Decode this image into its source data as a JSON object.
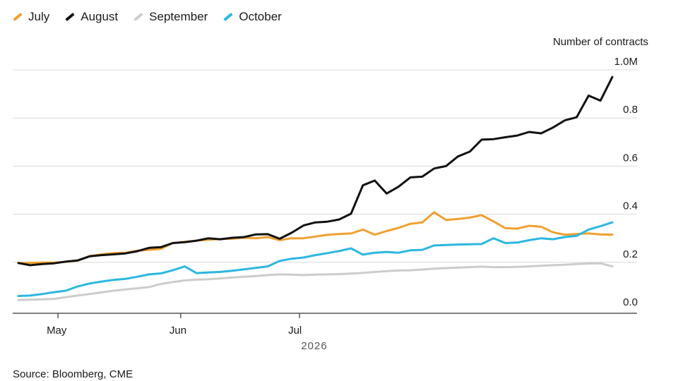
{
  "chart_data": {
    "type": "line",
    "ylabel": "Number of contracts",
    "xlabel": "2026",
    "ylim": [
      0,
      1.0
    ],
    "y_ticks": [
      "0.0",
      "0.2",
      "0.4",
      "0.6",
      "0.8",
      "1.0M"
    ],
    "x_ticks": [
      "May",
      "Jun",
      "Jul"
    ],
    "grid": "horizontal",
    "legend_position": "top-left",
    "source": "Source: Bloomberg, CME",
    "series": [
      {
        "name": "July",
        "color": "#f0a030",
        "points": [
          [
            "2026-04-21",
            0.197
          ],
          [
            "2026-04-24",
            0.198
          ],
          [
            "2026-04-27",
            0.199
          ],
          [
            "2026-04-30",
            0.199
          ],
          [
            "2026-05-03",
            0.202
          ],
          [
            "2026-05-06",
            0.207
          ],
          [
            "2026-05-09",
            0.226
          ],
          [
            "2026-05-12",
            0.233
          ],
          [
            "2026-05-15",
            0.238
          ],
          [
            "2026-05-18",
            0.24
          ],
          [
            "2026-05-21",
            0.248
          ],
          [
            "2026-05-24",
            0.252
          ],
          [
            "2026-05-27",
            0.256
          ],
          [
            "2026-05-30",
            0.28
          ],
          [
            "2026-06-02",
            0.285
          ],
          [
            "2026-06-05",
            0.29
          ],
          [
            "2026-06-08",
            0.294
          ],
          [
            "2026-06-11",
            0.297
          ],
          [
            "2026-06-14",
            0.298
          ],
          [
            "2026-06-17",
            0.302
          ],
          [
            "2026-06-20",
            0.3
          ],
          [
            "2026-06-23",
            0.305
          ],
          [
            "2026-06-26",
            0.292
          ],
          [
            "2026-06-29",
            0.3
          ],
          [
            "2026-07-02",
            0.3
          ],
          [
            "2026-07-05",
            0.307
          ],
          [
            "2026-07-08",
            0.314
          ],
          [
            "2026-07-11",
            0.318
          ],
          [
            "2026-07-14",
            0.32
          ],
          [
            "2026-07-17",
            0.336
          ],
          [
            "2026-07-20",
            0.315
          ],
          [
            "2026-07-23",
            0.33
          ],
          [
            "2026-07-26",
            0.343
          ],
          [
            "2026-07-29",
            0.36
          ],
          [
            "2026-08-01",
            0.366
          ],
          [
            "2026-08-04",
            0.408
          ],
          [
            "2026-08-07",
            0.376
          ],
          [
            "2026-08-10",
            0.38
          ],
          [
            "2026-08-13",
            0.386
          ],
          [
            "2026-08-16",
            0.396
          ],
          [
            "2026-08-19",
            0.37
          ],
          [
            "2026-08-22",
            0.342
          ],
          [
            "2026-08-25",
            0.34
          ],
          [
            "2026-08-28",
            0.352
          ],
          [
            "2026-08-31",
            0.348
          ],
          [
            "2026-09-03",
            0.325
          ],
          [
            "2026-09-06",
            0.315
          ],
          [
            "2026-09-09",
            0.318
          ],
          [
            "2026-09-12",
            0.32
          ],
          [
            "2026-09-15",
            0.316
          ],
          [
            "2026-09-18",
            0.315
          ]
        ]
      },
      {
        "name": "August",
        "color": "#111111",
        "points": [
          [
            "2026-04-21",
            0.197
          ],
          [
            "2026-04-24",
            0.188
          ],
          [
            "2026-04-27",
            0.193
          ],
          [
            "2026-04-30",
            0.196
          ],
          [
            "2026-05-03",
            0.203
          ],
          [
            "2026-05-06",
            0.208
          ],
          [
            "2026-05-09",
            0.225
          ],
          [
            "2026-05-12",
            0.23
          ],
          [
            "2026-05-15",
            0.233
          ],
          [
            "2026-05-18",
            0.237
          ],
          [
            "2026-05-21",
            0.246
          ],
          [
            "2026-05-24",
            0.26
          ],
          [
            "2026-05-27",
            0.263
          ],
          [
            "2026-05-30",
            0.28
          ],
          [
            "2026-06-02",
            0.284
          ],
          [
            "2026-06-05",
            0.29
          ],
          [
            "2026-06-08",
            0.3
          ],
          [
            "2026-06-11",
            0.296
          ],
          [
            "2026-06-14",
            0.302
          ],
          [
            "2026-06-17",
            0.305
          ],
          [
            "2026-06-20",
            0.316
          ],
          [
            "2026-06-23",
            0.317
          ],
          [
            "2026-06-26",
            0.298
          ],
          [
            "2026-06-29",
            0.323
          ],
          [
            "2026-07-02",
            0.353
          ],
          [
            "2026-07-05",
            0.366
          ],
          [
            "2026-07-08",
            0.369
          ],
          [
            "2026-07-11",
            0.378
          ],
          [
            "2026-07-14",
            0.402
          ],
          [
            "2026-07-17",
            0.52
          ],
          [
            "2026-07-20",
            0.54
          ],
          [
            "2026-07-23",
            0.486
          ],
          [
            "2026-07-26",
            0.514
          ],
          [
            "2026-07-29",
            0.553
          ],
          [
            "2026-08-01",
            0.556
          ],
          [
            "2026-08-04",
            0.59
          ],
          [
            "2026-08-07",
            0.6
          ],
          [
            "2026-08-10",
            0.64
          ],
          [
            "2026-08-13",
            0.66
          ],
          [
            "2026-08-16",
            0.71
          ],
          [
            "2026-08-19",
            0.712
          ],
          [
            "2026-08-22",
            0.72
          ],
          [
            "2026-08-25",
            0.727
          ],
          [
            "2026-08-28",
            0.742
          ],
          [
            "2026-08-31",
            0.736
          ],
          [
            "2026-09-03",
            0.76
          ],
          [
            "2026-09-06",
            0.79
          ],
          [
            "2026-09-09",
            0.803
          ],
          [
            "2026-09-12",
            0.893
          ],
          [
            "2026-09-15",
            0.872
          ],
          [
            "2026-09-18",
            0.97
          ]
        ]
      },
      {
        "name": "September",
        "color": "#cccccc",
        "points": [
          [
            "2026-04-21",
            0.043
          ],
          [
            "2026-04-24",
            0.045
          ],
          [
            "2026-04-27",
            0.046
          ],
          [
            "2026-04-30",
            0.048
          ],
          [
            "2026-05-03",
            0.055
          ],
          [
            "2026-05-06",
            0.062
          ],
          [
            "2026-05-09",
            0.068
          ],
          [
            "2026-05-12",
            0.075
          ],
          [
            "2026-05-15",
            0.082
          ],
          [
            "2026-05-18",
            0.087
          ],
          [
            "2026-05-21",
            0.092
          ],
          [
            "2026-05-24",
            0.097
          ],
          [
            "2026-05-27",
            0.11
          ],
          [
            "2026-05-30",
            0.118
          ],
          [
            "2026-06-02",
            0.125
          ],
          [
            "2026-06-05",
            0.128
          ],
          [
            "2026-06-08",
            0.13
          ],
          [
            "2026-06-11",
            0.133
          ],
          [
            "2026-06-14",
            0.137
          ],
          [
            "2026-06-17",
            0.14
          ],
          [
            "2026-06-20",
            0.143
          ],
          [
            "2026-06-23",
            0.147
          ],
          [
            "2026-06-26",
            0.15
          ],
          [
            "2026-06-29",
            0.149
          ],
          [
            "2026-07-02",
            0.147
          ],
          [
            "2026-07-05",
            0.149
          ],
          [
            "2026-07-08",
            0.15
          ],
          [
            "2026-07-11",
            0.151
          ],
          [
            "2026-07-14",
            0.153
          ],
          [
            "2026-07-17",
            0.156
          ],
          [
            "2026-07-20",
            0.16
          ],
          [
            "2026-07-23",
            0.163
          ],
          [
            "2026-07-26",
            0.166
          ],
          [
            "2026-07-29",
            0.167
          ],
          [
            "2026-08-01",
            0.17
          ],
          [
            "2026-08-04",
            0.174
          ],
          [
            "2026-08-07",
            0.176
          ],
          [
            "2026-08-10",
            0.178
          ],
          [
            "2026-08-13",
            0.18
          ],
          [
            "2026-08-16",
            0.182
          ],
          [
            "2026-08-19",
            0.18
          ],
          [
            "2026-08-22",
            0.18
          ],
          [
            "2026-08-25",
            0.181
          ],
          [
            "2026-08-28",
            0.183
          ],
          [
            "2026-08-31",
            0.186
          ],
          [
            "2026-09-03",
            0.188
          ],
          [
            "2026-09-06",
            0.19
          ],
          [
            "2026-09-09",
            0.193
          ],
          [
            "2026-09-12",
            0.195
          ],
          [
            "2026-09-15",
            0.196
          ],
          [
            "2026-09-18",
            0.183
          ]
        ]
      },
      {
        "name": "October",
        "color": "#2bb7e0",
        "points": [
          [
            "2026-04-21",
            0.06
          ],
          [
            "2026-04-24",
            0.062
          ],
          [
            "2026-04-27",
            0.068
          ],
          [
            "2026-04-30",
            0.076
          ],
          [
            "2026-05-03",
            0.082
          ],
          [
            "2026-05-06",
            0.1
          ],
          [
            "2026-05-09",
            0.112
          ],
          [
            "2026-05-12",
            0.12
          ],
          [
            "2026-05-15",
            0.127
          ],
          [
            "2026-05-18",
            0.131
          ],
          [
            "2026-05-21",
            0.14
          ],
          [
            "2026-05-24",
            0.15
          ],
          [
            "2026-05-27",
            0.154
          ],
          [
            "2026-05-30",
            0.167
          ],
          [
            "2026-06-02",
            0.183
          ],
          [
            "2026-06-05",
            0.155
          ],
          [
            "2026-06-08",
            0.158
          ],
          [
            "2026-06-11",
            0.16
          ],
          [
            "2026-06-14",
            0.165
          ],
          [
            "2026-06-17",
            0.171
          ],
          [
            "2026-06-20",
            0.177
          ],
          [
            "2026-06-23",
            0.183
          ],
          [
            "2026-06-26",
            0.206
          ],
          [
            "2026-06-29",
            0.215
          ],
          [
            "2026-07-02",
            0.22
          ],
          [
            "2026-07-05",
            0.23
          ],
          [
            "2026-07-08",
            0.238
          ],
          [
            "2026-07-11",
            0.247
          ],
          [
            "2026-07-14",
            0.258
          ],
          [
            "2026-07-17",
            0.232
          ],
          [
            "2026-07-20",
            0.24
          ],
          [
            "2026-07-23",
            0.243
          ],
          [
            "2026-07-26",
            0.24
          ],
          [
            "2026-07-29",
            0.25
          ],
          [
            "2026-08-01",
            0.252
          ],
          [
            "2026-08-04",
            0.27
          ],
          [
            "2026-08-07",
            0.272
          ],
          [
            "2026-08-10",
            0.274
          ],
          [
            "2026-08-13",
            0.275
          ],
          [
            "2026-08-16",
            0.276
          ],
          [
            "2026-08-19",
            0.3
          ],
          [
            "2026-08-22",
            0.28
          ],
          [
            "2026-08-25",
            0.282
          ],
          [
            "2026-08-28",
            0.292
          ],
          [
            "2026-08-31",
            0.3
          ],
          [
            "2026-09-03",
            0.296
          ],
          [
            "2026-09-06",
            0.305
          ],
          [
            "2026-09-09",
            0.31
          ],
          [
            "2026-09-12",
            0.336
          ],
          [
            "2026-09-15",
            0.35
          ],
          [
            "2026-09-18",
            0.366
          ]
        ]
      }
    ]
  }
}
